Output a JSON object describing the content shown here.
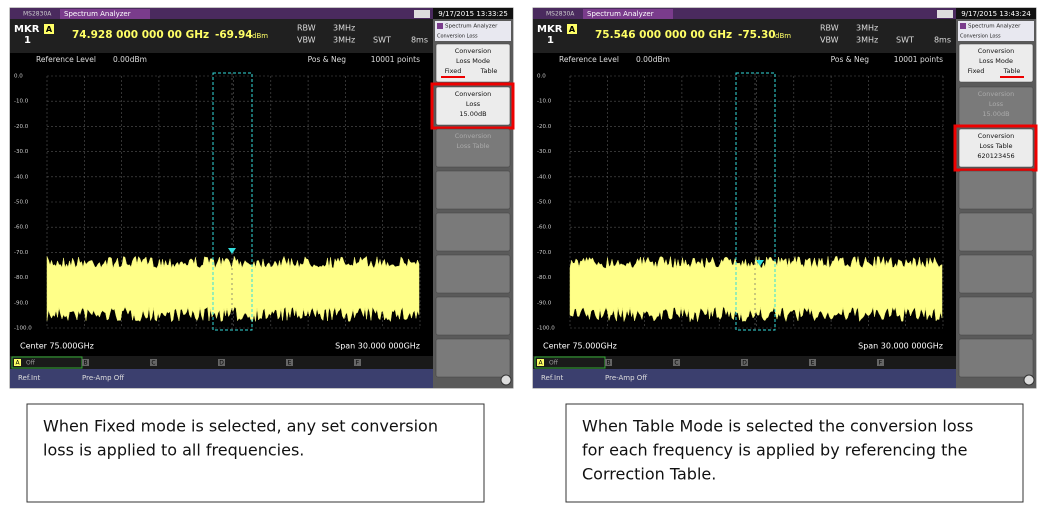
{
  "panels": [
    {
      "model": "MS2830A",
      "app": "Spectrum Analyzer",
      "datetime": "9/17/2015 13:33:25",
      "marker": "MKR",
      "marker_num": "1",
      "marker_trace": "A",
      "marker_freq": "74.928 000 000 00 GHz",
      "marker_level": "-69.94",
      "marker_unit": "dBm",
      "rbw_label": "RBW",
      "rbw": "3MHz",
      "vbw_label": "VBW",
      "vbw": "3MHz",
      "swt_label": "SWT",
      "swt": "8ms",
      "ref_level_label": "Reference Level",
      "ref_level": "0.00dBm",
      "detector": "Pos & Neg",
      "points": "10001 points",
      "yticks": [
        "0.0",
        "-10.0",
        "-20.0",
        "-30.0",
        "-40.0",
        "-50.0",
        "-60.0",
        "-70.0",
        "-80.0",
        "-90.0",
        "-100.0"
      ],
      "center": "Center 75.000GHz",
      "span": "Span 30.000 000GHz",
      "traces": [
        "A",
        "B",
        "C",
        "D",
        "E",
        "F"
      ],
      "trace_a_state": "Off",
      "status_ref": "Ref.Int",
      "status_preamp": "Pre-Amp Off",
      "menu_title": "Spectrum Analyzer",
      "menu_sub": "Conversion Loss",
      "softkeys": [
        {
          "lines": [
            "Conversion",
            "Loss Mode"
          ],
          "options": [
            "Fixed",
            "Table"
          ],
          "selected_option": 0,
          "enabled": true
        },
        {
          "lines": [
            "Conversion",
            "Loss",
            "15.00dB"
          ],
          "enabled": true
        },
        {
          "lines": [
            "Conversion",
            "Loss Table"
          ],
          "enabled": false
        }
      ],
      "highlighted_key": 1
    },
    {
      "model": "MS2830A",
      "app": "Spectrum Analyzer",
      "datetime": "9/17/2015 13:43:24",
      "marker": "MKR",
      "marker_num": "1",
      "marker_trace": "A",
      "marker_freq": "75.546 000 000 00 GHz",
      "marker_level": "-75.30",
      "marker_unit": "dBm",
      "rbw_label": "RBW",
      "rbw": "3MHz",
      "vbw_label": "VBW",
      "vbw": "3MHz",
      "swt_label": "SWT",
      "swt": "8ms",
      "ref_level_label": "Reference Level",
      "ref_level": "0.00dBm",
      "detector": "Pos & Neg",
      "points": "10001 points",
      "yticks": [
        "0.0",
        "-10.0",
        "-20.0",
        "-30.0",
        "-40.0",
        "-50.0",
        "-60.0",
        "-70.0",
        "-80.0",
        "-90.0",
        "-100.0"
      ],
      "center": "Center 75.000GHz",
      "span": "Span 30.000 000GHz",
      "traces": [
        "A",
        "B",
        "C",
        "D",
        "E",
        "F"
      ],
      "trace_a_state": "Off",
      "status_ref": "Ref.Int",
      "status_preamp": "Pre-Amp Off",
      "menu_title": "Spectrum Analyzer",
      "menu_sub": "Conversion Loss",
      "softkeys": [
        {
          "lines": [
            "Conversion",
            "Loss Mode"
          ],
          "options": [
            "Fixed",
            "Table"
          ],
          "selected_option": 1,
          "enabled": true
        },
        {
          "lines": [
            "Conversion",
            "Loss",
            "15.00dB"
          ],
          "enabled": false
        },
        {
          "lines": [
            "Conversion",
            "Loss Table",
            "620123456"
          ],
          "enabled": true
        }
      ],
      "highlighted_key": 2
    }
  ],
  "captions": [
    {
      "lines": [
        "When Fixed mode is selected, any set conversion",
        "loss is applied to all frequencies."
      ]
    },
    {
      "lines": [
        "When Table Mode is selected the conversion loss",
        "for each frequency is applied by referencing the",
        "Correction Table."
      ]
    }
  ]
}
